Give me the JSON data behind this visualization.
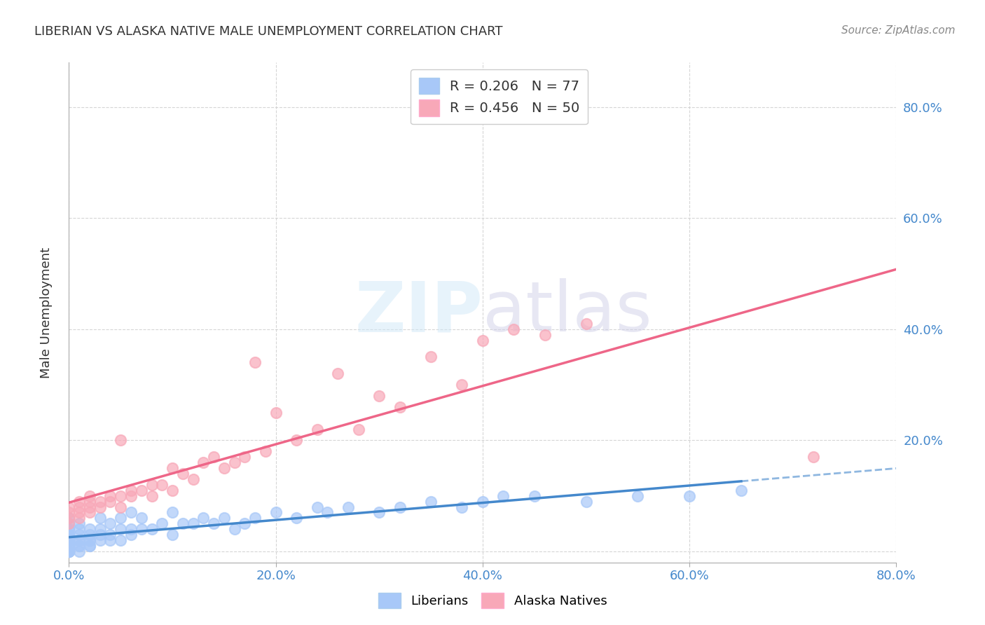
{
  "title": "LIBERIAN VS ALASKA NATIVE MALE UNEMPLOYMENT CORRELATION CHART",
  "source": "Source: ZipAtlas.com",
  "xlabel_label": "",
  "ylabel_label": "Male Unemployment",
  "x_ticks": [
    0.0,
    0.2,
    0.4,
    0.6,
    0.8
  ],
  "x_tick_labels": [
    "0.0%",
    "20.0%",
    "40.0%",
    "60.0%",
    "80.0%"
  ],
  "y_ticks": [
    0.0,
    0.2,
    0.4,
    0.6,
    0.8
  ],
  "y_tick_labels_right": [
    "",
    "20.0%",
    "40.0%",
    "60.0%",
    "80.0%"
  ],
  "xlim": [
    0.0,
    0.8
  ],
  "ylim": [
    -0.02,
    0.88
  ],
  "liberian_color": "#a8c8f8",
  "alaska_color": "#f8a8b8",
  "liberian_R": 0.206,
  "liberian_N": 77,
  "alaska_R": 0.456,
  "alaska_N": 50,
  "liberian_line_color": "#4488cc",
  "alaska_line_color": "#ee6688",
  "background_color": "#ffffff",
  "grid_color": "#cccccc",
  "watermark": "ZIPatlas",
  "liberian_x": [
    0.0,
    0.0,
    0.0,
    0.0,
    0.0,
    0.0,
    0.0,
    0.0,
    0.0,
    0.0,
    0.0,
    0.0,
    0.0,
    0.0,
    0.0,
    0.0,
    0.0,
    0.0,
    0.0,
    0.0,
    0.01,
    0.01,
    0.01,
    0.01,
    0.01,
    0.01,
    0.01,
    0.01,
    0.02,
    0.02,
    0.02,
    0.02,
    0.02,
    0.02,
    0.03,
    0.03,
    0.03,
    0.03,
    0.04,
    0.04,
    0.04,
    0.05,
    0.05,
    0.05,
    0.06,
    0.06,
    0.06,
    0.07,
    0.07,
    0.08,
    0.09,
    0.1,
    0.1,
    0.11,
    0.12,
    0.13,
    0.14,
    0.15,
    0.16,
    0.17,
    0.18,
    0.2,
    0.22,
    0.24,
    0.25,
    0.27,
    0.3,
    0.32,
    0.35,
    0.38,
    0.4,
    0.42,
    0.45,
    0.5,
    0.55,
    0.6,
    0.65
  ],
  "liberian_y": [
    0.0,
    0.0,
    0.0,
    0.0,
    0.0,
    0.0,
    0.01,
    0.01,
    0.01,
    0.02,
    0.02,
    0.02,
    0.02,
    0.03,
    0.03,
    0.03,
    0.04,
    0.04,
    0.05,
    0.06,
    0.0,
    0.01,
    0.01,
    0.02,
    0.02,
    0.03,
    0.04,
    0.05,
    0.01,
    0.01,
    0.02,
    0.02,
    0.03,
    0.04,
    0.02,
    0.03,
    0.04,
    0.06,
    0.02,
    0.03,
    0.05,
    0.02,
    0.04,
    0.06,
    0.03,
    0.04,
    0.07,
    0.04,
    0.06,
    0.04,
    0.05,
    0.03,
    0.07,
    0.05,
    0.05,
    0.06,
    0.05,
    0.06,
    0.04,
    0.05,
    0.06,
    0.07,
    0.06,
    0.08,
    0.07,
    0.08,
    0.07,
    0.08,
    0.09,
    0.08,
    0.09,
    0.1,
    0.1,
    0.09,
    0.1,
    0.1,
    0.11
  ],
  "alaska_x": [
    0.0,
    0.0,
    0.0,
    0.0,
    0.01,
    0.01,
    0.01,
    0.01,
    0.02,
    0.02,
    0.02,
    0.02,
    0.03,
    0.03,
    0.04,
    0.04,
    0.05,
    0.05,
    0.05,
    0.06,
    0.06,
    0.07,
    0.08,
    0.08,
    0.09,
    0.1,
    0.1,
    0.11,
    0.12,
    0.13,
    0.14,
    0.15,
    0.16,
    0.17,
    0.18,
    0.19,
    0.2,
    0.22,
    0.24,
    0.26,
    0.28,
    0.3,
    0.32,
    0.35,
    0.38,
    0.4,
    0.43,
    0.46,
    0.5,
    0.72
  ],
  "alaska_y": [
    0.05,
    0.06,
    0.07,
    0.08,
    0.06,
    0.07,
    0.08,
    0.09,
    0.07,
    0.08,
    0.09,
    0.1,
    0.08,
    0.09,
    0.09,
    0.1,
    0.08,
    0.1,
    0.2,
    0.1,
    0.11,
    0.11,
    0.1,
    0.12,
    0.12,
    0.11,
    0.15,
    0.14,
    0.13,
    0.16,
    0.17,
    0.15,
    0.16,
    0.17,
    0.34,
    0.18,
    0.25,
    0.2,
    0.22,
    0.32,
    0.22,
    0.28,
    0.26,
    0.35,
    0.3,
    0.38,
    0.4,
    0.39,
    0.41,
    0.17
  ]
}
